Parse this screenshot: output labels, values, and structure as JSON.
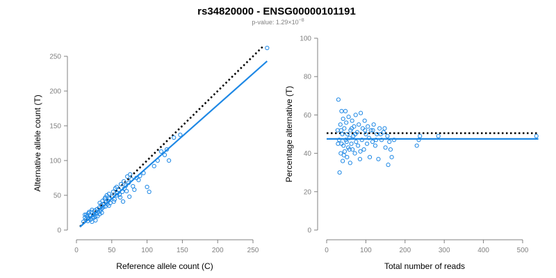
{
  "header": {
    "title": "rs34820000 - ENSG00000101191",
    "pvalue_prefix": "p-value: 1.29×10",
    "pvalue_exponent": "−8"
  },
  "colors": {
    "points": "#1e88e5",
    "fit_line": "#1e88e5",
    "reference_line": "#000000",
    "axis": "#808080"
  },
  "chart_data": [
    {
      "type": "scatter",
      "xlabel": "Reference allele count (C)",
      "ylabel": "Alternative allele count (T)",
      "xlim": [
        0,
        250
      ],
      "ylim": [
        0,
        250
      ],
      "xticks": [
        0,
        50,
        100,
        150,
        200,
        250
      ],
      "yticks": [
        0,
        50,
        100,
        150,
        200,
        250
      ],
      "grid": false,
      "points": [
        [
          10,
          12
        ],
        [
          12,
          18
        ],
        [
          13,
          15
        ],
        [
          14,
          22
        ],
        [
          15,
          20
        ],
        [
          16,
          13
        ],
        [
          17,
          24
        ],
        [
          18,
          17
        ],
        [
          19,
          21
        ],
        [
          20,
          15
        ],
        [
          21,
          26
        ],
        [
          22,
          12
        ],
        [
          23,
          19
        ],
        [
          24,
          22
        ],
        [
          25,
          18
        ],
        [
          26,
          28
        ],
        [
          27,
          14
        ],
        [
          28,
          24
        ],
        [
          29,
          30
        ],
        [
          30,
          20
        ],
        [
          31,
          26
        ],
        [
          32,
          32
        ],
        [
          33,
          23
        ],
        [
          34,
          28
        ],
        [
          35,
          36
        ],
        [
          36,
          31
        ],
        [
          37,
          42
        ],
        [
          38,
          33
        ],
        [
          39,
          38
        ],
        [
          40,
          45
        ],
        [
          41,
          34
        ],
        [
          42,
          40
        ],
        [
          43,
          50
        ],
        [
          44,
          37
        ],
        [
          45,
          42
        ],
        [
          46,
          52
        ],
        [
          47,
          45
        ],
        [
          48,
          39
        ],
        [
          50,
          48
        ],
        [
          52,
          55
        ],
        [
          54,
          44
        ],
        [
          55,
          60
        ],
        [
          57,
          50
        ],
        [
          58,
          53
        ],
        [
          60,
          58
        ],
        [
          62,
          47
        ],
        [
          63,
          66
        ],
        [
          65,
          55
        ],
        [
          67,
          70
        ],
        [
          68,
          60
        ],
        [
          70,
          64
        ],
        [
          72,
          77
        ],
        [
          74,
          68
        ],
        [
          76,
          80
        ],
        [
          78,
          73
        ],
        [
          80,
          63
        ],
        [
          82,
          58
        ],
        [
          85,
          75
        ],
        [
          88,
          72
        ],
        [
          90,
          78
        ],
        [
          95,
          82
        ],
        [
          100,
          62
        ],
        [
          103,
          55
        ],
        [
          110,
          92
        ],
        [
          115,
          100
        ],
        [
          120,
          113
        ],
        [
          125,
          108
        ],
        [
          128,
          116
        ],
        [
          131,
          100
        ],
        [
          138,
          133
        ],
        [
          147,
          137
        ],
        [
          270,
          262
        ],
        [
          12,
          22
        ],
        [
          18,
          26
        ],
        [
          22,
          29
        ],
        [
          27,
          20
        ],
        [
          33,
          39
        ],
        [
          36,
          25
        ],
        [
          41,
          47
        ],
        [
          46,
          35
        ],
        [
          53,
          41
        ],
        [
          57,
          62
        ],
        [
          61,
          51
        ],
        [
          66,
          41
        ],
        [
          71,
          56
        ],
        [
          75,
          48
        ]
      ],
      "fit_line": {
        "x": [
          5,
          270
        ],
        "y": [
          4.5,
          243
        ]
      },
      "reference_line": {
        "x": [
          5,
          270
        ],
        "y": [
          5,
          270
        ]
      }
    },
    {
      "type": "scatter",
      "xlabel": "Total number of reads",
      "ylabel": "Percentage alternative (T)",
      "xlim": [
        0,
        500
      ],
      "ylim": [
        0,
        100
      ],
      "xticks": [
        0,
        100,
        200,
        300,
        400,
        500
      ],
      "yticks": [
        0,
        20,
        40,
        60,
        80,
        100
      ],
      "grid": false,
      "points": [
        [
          28,
          52
        ],
        [
          30,
          68
        ],
        [
          32,
          47
        ],
        [
          33,
          30
        ],
        [
          35,
          55
        ],
        [
          36,
          40
        ],
        [
          38,
          62
        ],
        [
          38,
          45
        ],
        [
          40,
          50
        ],
        [
          41,
          36
        ],
        [
          42,
          58
        ],
        [
          43,
          44
        ],
        [
          45,
          53
        ],
        [
          46,
          41
        ],
        [
          48,
          62
        ],
        [
          49,
          47
        ],
        [
          50,
          56
        ],
        [
          52,
          38
        ],
        [
          53,
          50
        ],
        [
          55,
          43
        ],
        [
          56,
          59
        ],
        [
          58,
          48
        ],
        [
          60,
          35
        ],
        [
          61,
          52
        ],
        [
          63,
          45
        ],
        [
          65,
          57
        ],
        [
          66,
          42
        ],
        [
          68,
          49
        ],
        [
          70,
          54
        ],
        [
          72,
          40
        ],
        [
          74,
          60
        ],
        [
          75,
          46
        ],
        [
          78,
          51
        ],
        [
          80,
          44
        ],
        [
          82,
          55
        ],
        [
          85,
          37
        ],
        [
          87,
          61
        ],
        [
          90,
          47
        ],
        [
          92,
          53
        ],
        [
          95,
          42
        ],
        [
          97,
          57
        ],
        [
          100,
          50
        ],
        [
          103,
          45
        ],
        [
          105,
          54
        ],
        [
          108,
          48
        ],
        [
          110,
          38
        ],
        [
          113,
          52
        ],
        [
          117,
          46
        ],
        [
          120,
          55
        ],
        [
          124,
          44
        ],
        [
          128,
          50
        ],
        [
          132,
          37
        ],
        [
          135,
          53
        ],
        [
          140,
          47
        ],
        [
          145,
          51
        ],
        [
          150,
          43
        ],
        [
          155,
          49
        ],
        [
          160,
          46
        ],
        [
          166,
          38
        ],
        [
          172,
          47
        ],
        [
          230,
          44
        ],
        [
          235,
          47
        ],
        [
          238,
          49
        ],
        [
          285,
          49
        ],
        [
          535,
          49
        ],
        [
          29,
          45
        ],
        [
          37,
          52
        ],
        [
          44,
          39
        ],
        [
          51,
          46
        ],
        [
          58,
          42
        ],
        [
          64,
          53
        ],
        [
          73,
          50
        ],
        [
          86,
          41
        ],
        [
          98,
          52
        ],
        [
          118,
          52
        ],
        [
          126,
          47
        ],
        [
          138,
          50
        ],
        [
          148,
          53
        ],
        [
          157,
          34
        ],
        [
          163,
          42
        ]
      ],
      "fit_line": {
        "x": [
          0,
          540
        ],
        "y": [
          47.5,
          47.5
        ]
      },
      "reference_line": {
        "x": [
          0,
          540
        ],
        "y": [
          50.5,
          50.5
        ]
      }
    }
  ]
}
